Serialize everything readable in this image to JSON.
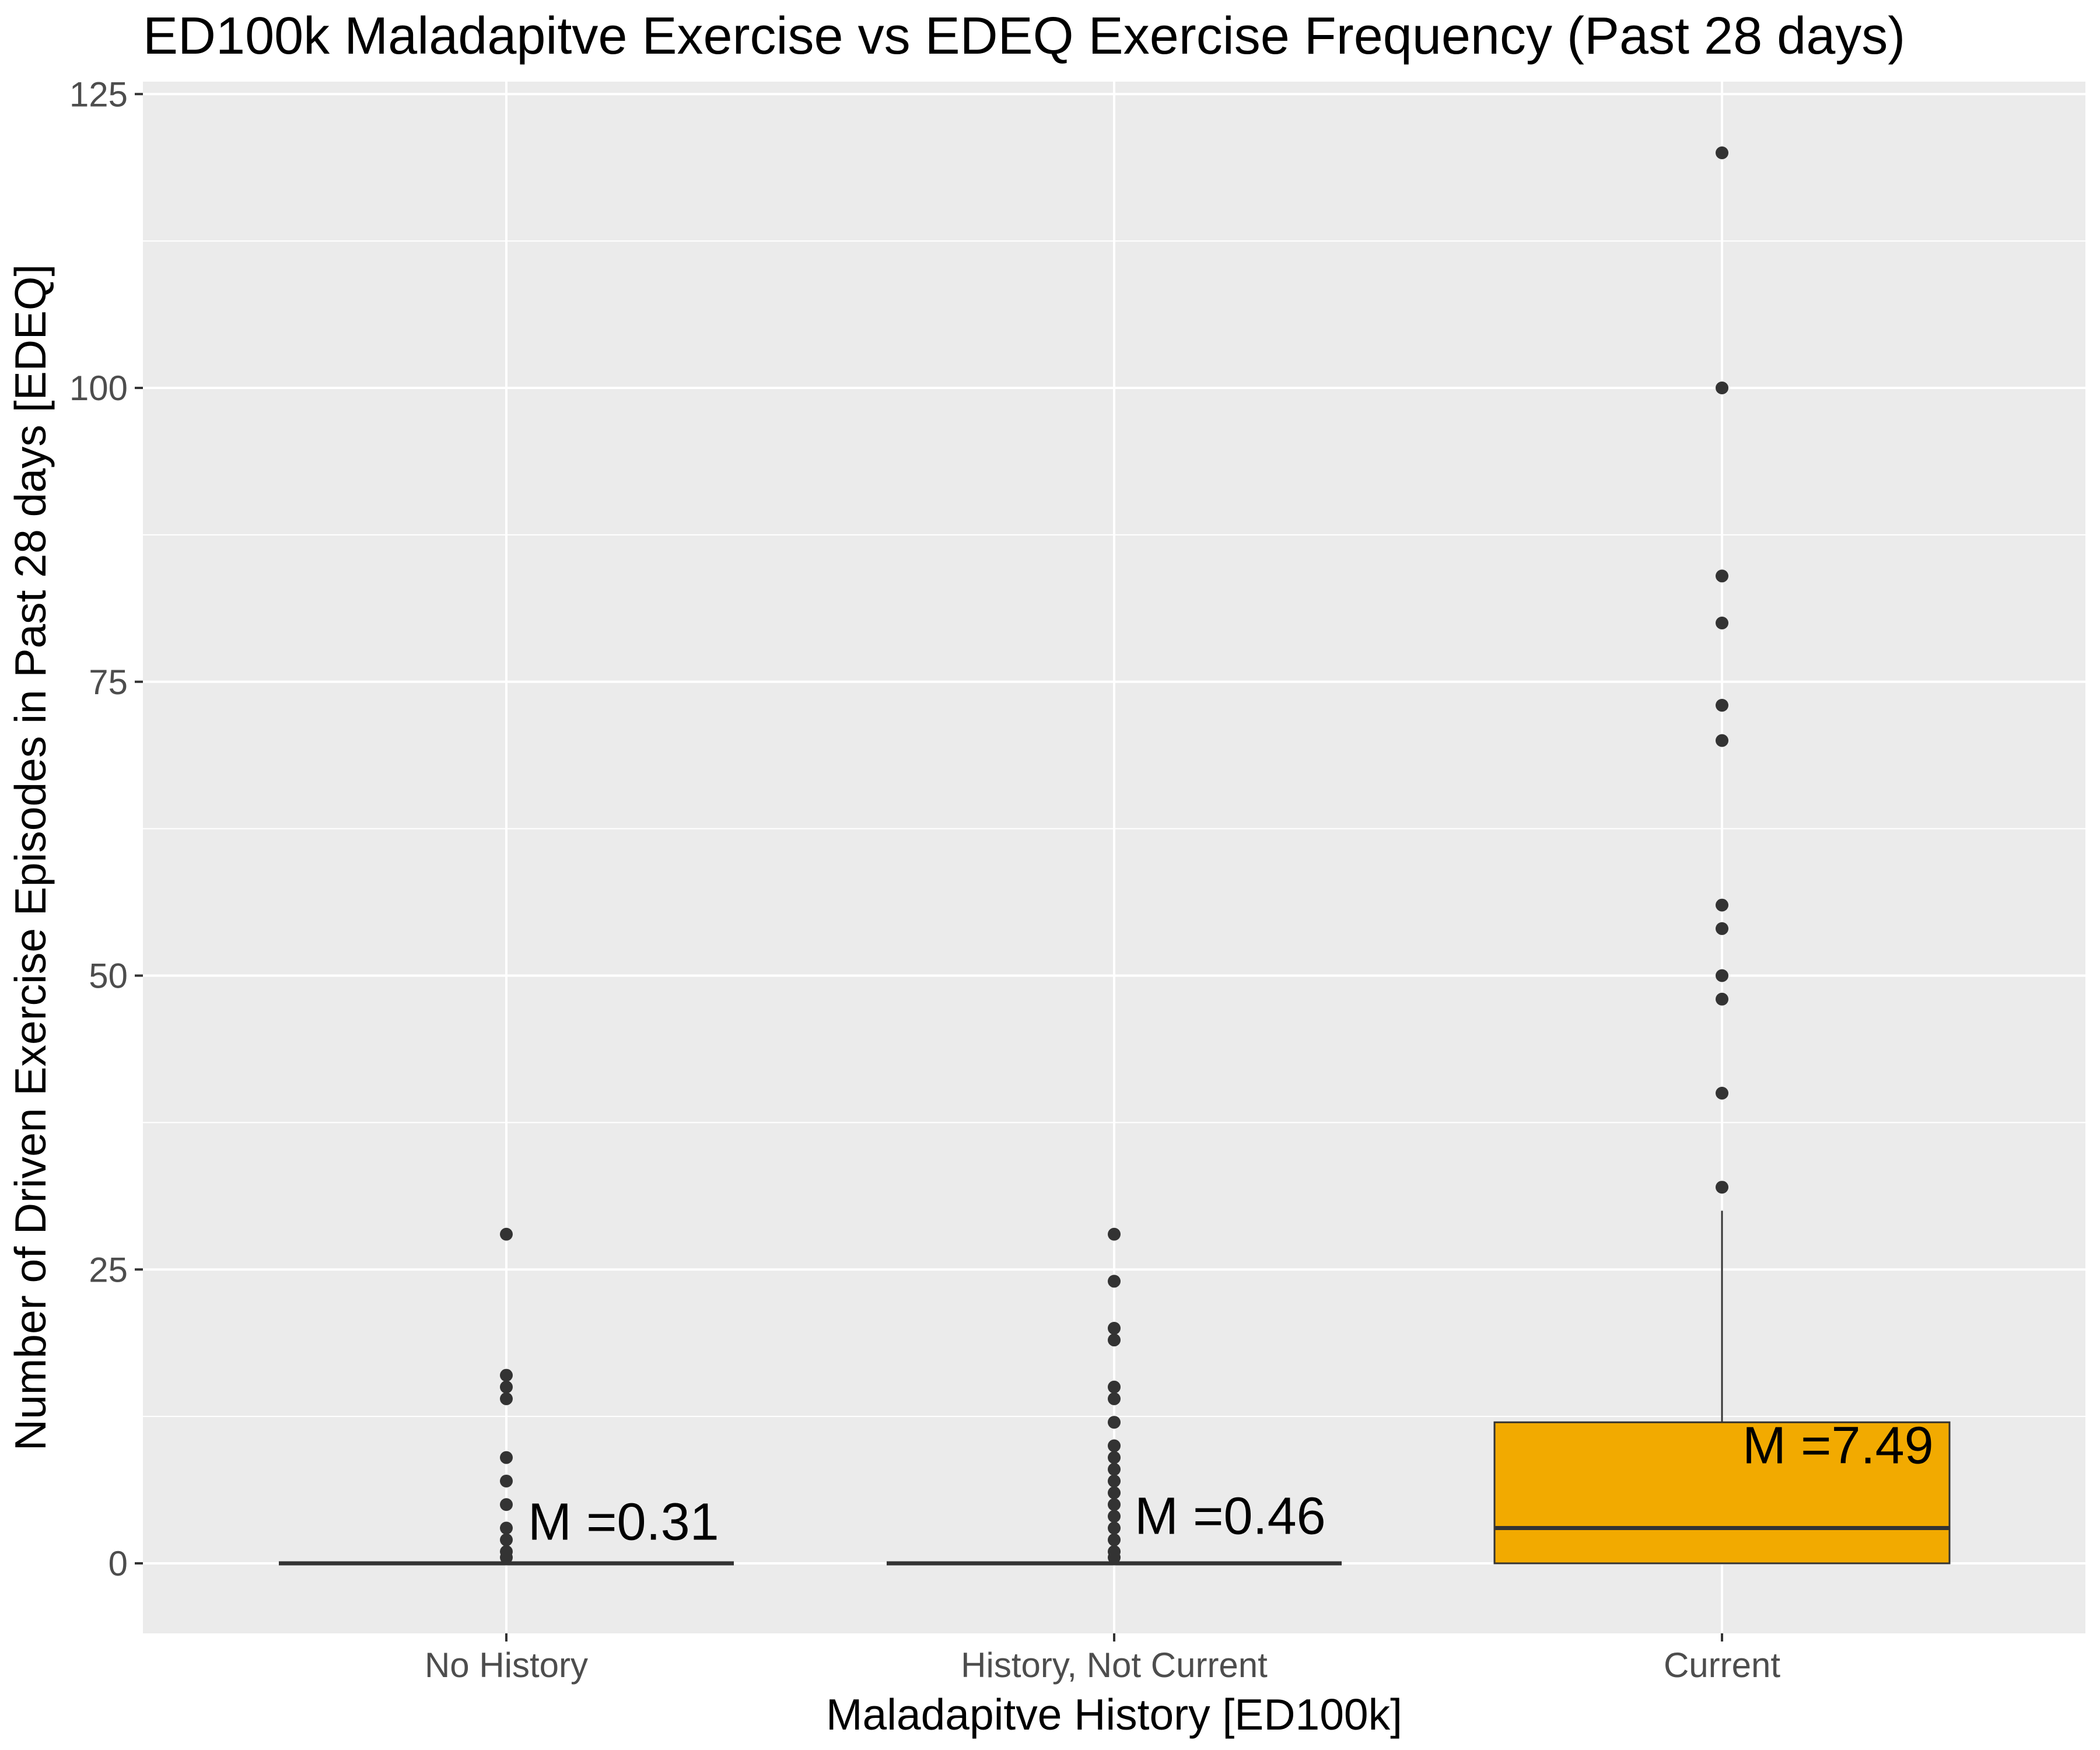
{
  "chart_data": {
    "type": "box",
    "title": "ED100k Maladapitve Exercise vs EDEQ Exercise Frequency (Past 28 days)",
    "xlabel": "Maladapitve History [ED100k]",
    "ylabel": "Number of Driven Exercise Episodes in Past 28 days [EDEQ]",
    "ylim": [
      -5,
      127
    ],
    "yticks": [
      0,
      25,
      50,
      75,
      100,
      125
    ],
    "grid": true,
    "legend": "none",
    "colors": {
      "panel_bg": "#ebebeb",
      "grid": "#ffffff",
      "box_line": "#333333",
      "point": "#333333",
      "current_fill": "#f2aa00"
    },
    "categories": [
      "No History",
      "History, Not Current",
      "Current"
    ],
    "boxes": [
      {
        "category": "No History",
        "q1": 0,
        "median": 0,
        "q3": 0,
        "whisker_low": 0,
        "whisker_high": 0,
        "fill": "",
        "outliers": [
          0.5,
          1,
          2,
          3,
          5,
          7,
          9,
          14,
          15,
          16,
          28
        ],
        "mean_label": "M =0.31"
      },
      {
        "category": "History, Not Current",
        "q1": 0,
        "median": 0,
        "q3": 0,
        "whisker_low": 0,
        "whisker_high": 0,
        "fill": "",
        "outliers": [
          0.5,
          1,
          2,
          3,
          4,
          5,
          6,
          7,
          8,
          9,
          10,
          12,
          14,
          15,
          19,
          20,
          24,
          28
        ],
        "mean_label": "M =0.46"
      },
      {
        "category": "Current",
        "q1": 0,
        "median": 3,
        "q3": 12,
        "whisker_low": 0,
        "whisker_high": 30,
        "fill": "#f2aa00",
        "outliers": [
          32,
          40,
          48,
          50,
          54,
          56,
          70,
          73,
          80,
          84,
          100,
          120
        ],
        "mean_label": "M =7.49"
      }
    ]
  }
}
